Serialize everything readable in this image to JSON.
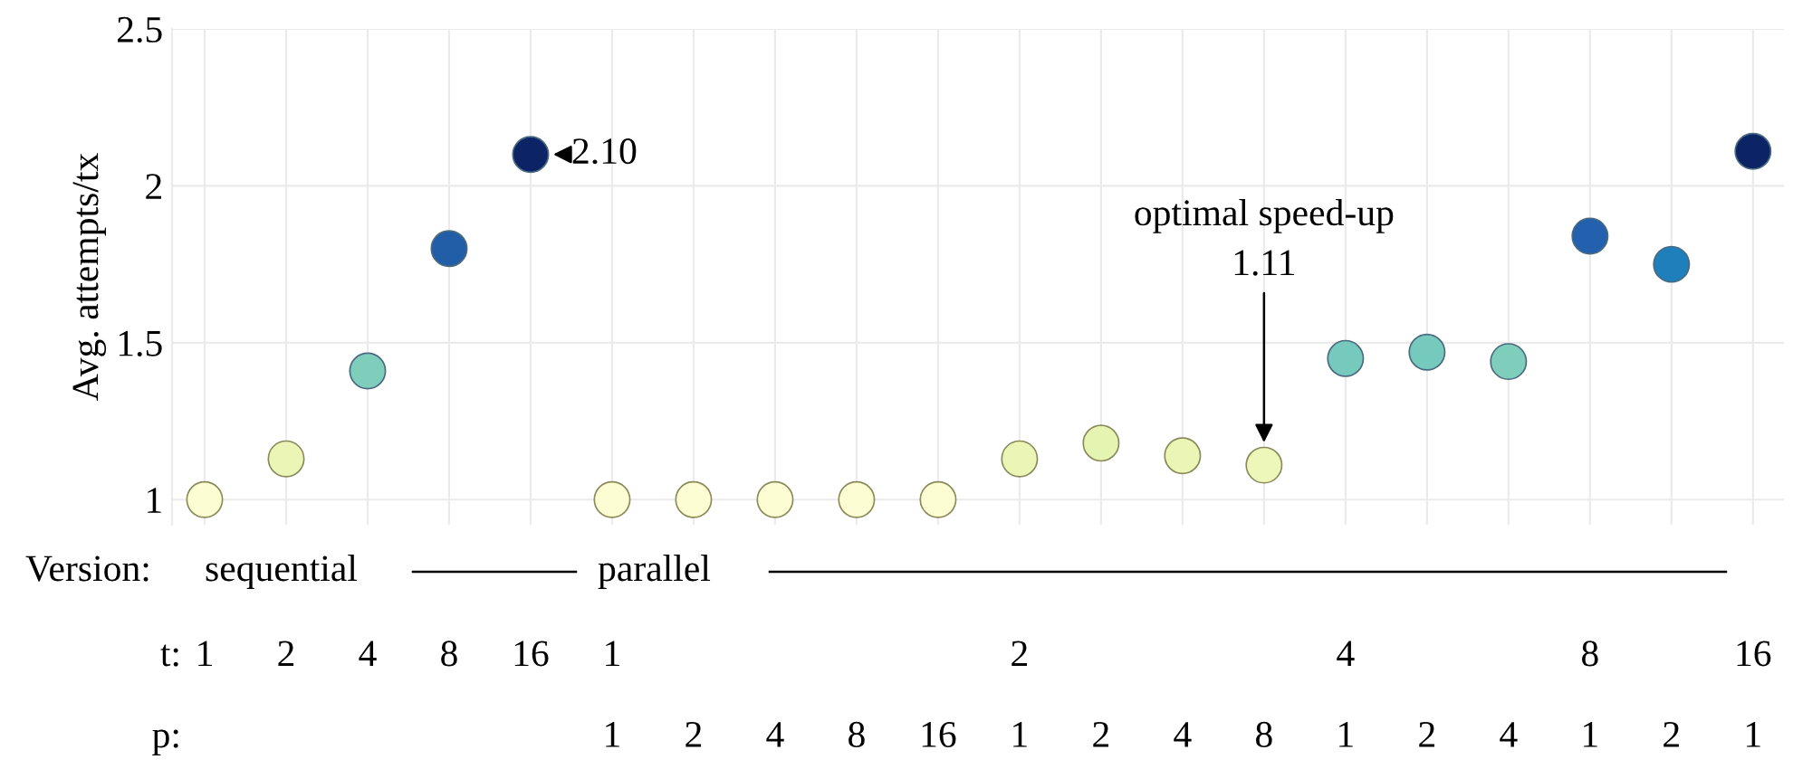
{
  "chart_data": {
    "type": "scatter",
    "ylabel": "Avg. attempts/tx",
    "categories": [
      null,
      null,
      null,
      null,
      null,
      "1",
      "2",
      "4",
      "8",
      "16",
      "1",
      "2",
      "4",
      "8",
      "1",
      "2",
      "4",
      "1",
      "2",
      "1"
    ],
    "values": [
      1.0,
      1.13,
      1.41,
      1.8,
      2.1,
      1.0,
      1.0,
      1.0,
      1.0,
      1.0,
      1.13,
      1.18,
      1.14,
      1.11,
      1.45,
      1.47,
      1.44,
      1.84,
      1.75,
      2.11
    ],
    "colors": [
      "#fdfdd3",
      "#ebf6b6",
      "#7fcdbb",
      "#225ea8",
      "#0c2465",
      "#fdfdd3",
      "#fdfdd3",
      "#fdfdd3",
      "#fdfdd3",
      "#fdfdd3",
      "#ebf6b6",
      "#e6f4b2",
      "#ebf6b6",
      "#eef7ba",
      "#76c9bd",
      "#76c9bd",
      "#7fcdbb",
      "#2360ad",
      "#1f7fba",
      "#0c2465"
    ],
    "ylim": [
      0.92,
      2.5
    ],
    "yticks": [
      1,
      1.5,
      2,
      2.5
    ],
    "grid": true,
    "marker": "circle",
    "annotations": [
      "2.10",
      "optimal speed-up\n1.11",
      "Version:",
      "sequential",
      "parallel",
      "t:",
      "p:",
      "1",
      "2",
      "4",
      "8",
      "16",
      "1",
      "2",
      "4",
      "8",
      "16"
    ]
  }
}
